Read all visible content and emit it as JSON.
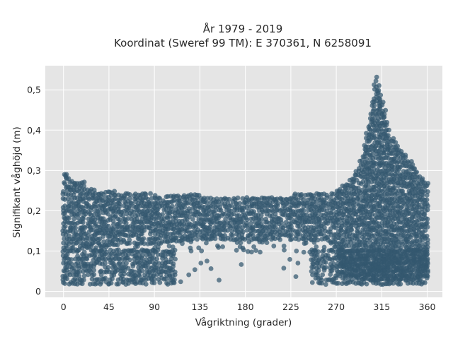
{
  "chart_data": {
    "type": "scatter",
    "title": "År 1979 - 2019",
    "subtitle": "Koordinat (Sweref 99 TM): E 370361, N 6258091",
    "xlabel": "Vågriktning (grader)",
    "ylabel": "Signifikant våghöjd (m)",
    "xlim": [
      -18,
      375
    ],
    "ylim": [
      -0.015,
      0.56
    ],
    "xticks": [
      0,
      45,
      90,
      135,
      180,
      225,
      270,
      315,
      360
    ],
    "xtick_labels": [
      "0",
      "45",
      "90",
      "135",
      "180",
      "225",
      "270",
      "315",
      "360"
    ],
    "yticks": [
      0,
      0.1,
      0.2,
      0.3,
      0.4,
      0.5
    ],
    "ytick_labels": [
      "0",
      "0,1",
      "0,2",
      "0,3",
      "0,4",
      "0,5"
    ],
    "grid": true,
    "marker_color": "#33586f",
    "background_color": "#e5e5e5",
    "series": [
      {
        "direction_step_deg": 2,
        "height_step_m": 0.01,
        "dense_band_upper_envelope": [
          [
            0,
            0.27
          ],
          [
            2,
            0.29
          ],
          [
            10,
            0.27
          ],
          [
            20,
            0.27
          ],
          [
            22,
            0.25
          ],
          [
            45,
            0.25
          ],
          [
            60,
            0.24
          ],
          [
            90,
            0.24
          ],
          [
            135,
            0.24
          ],
          [
            180,
            0.23
          ],
          [
            225,
            0.24
          ],
          [
            260,
            0.24
          ],
          [
            270,
            0.25
          ],
          [
            285,
            0.28
          ],
          [
            295,
            0.33
          ],
          [
            300,
            0.39
          ],
          [
            305,
            0.46
          ],
          [
            308,
            0.51
          ],
          [
            310,
            0.53
          ],
          [
            313,
            0.51
          ],
          [
            318,
            0.45
          ],
          [
            322,
            0.4
          ],
          [
            328,
            0.37
          ],
          [
            335,
            0.35
          ],
          [
            342,
            0.33
          ],
          [
            350,
            0.3
          ],
          [
            355,
            0.28
          ],
          [
            360,
            0.27
          ]
        ],
        "dense_band_lower_envelope": [
          [
            0,
            0.11
          ],
          [
            30,
            0.11
          ],
          [
            60,
            0.12
          ],
          [
            90,
            0.12
          ],
          [
            135,
            0.13
          ],
          [
            180,
            0.13
          ],
          [
            225,
            0.13
          ],
          [
            260,
            0.13
          ],
          [
            268,
            0.12
          ],
          [
            275,
            0.05
          ],
          [
            300,
            0.03
          ],
          [
            340,
            0.03
          ],
          [
            360,
            0.04
          ]
        ],
        "sparse_low_cluster_deg": [
          [
            0,
            110
          ],
          [
            245,
            360
          ]
        ],
        "low_cluster_height_range": [
          0.02,
          0.1
        ]
      }
    ]
  }
}
